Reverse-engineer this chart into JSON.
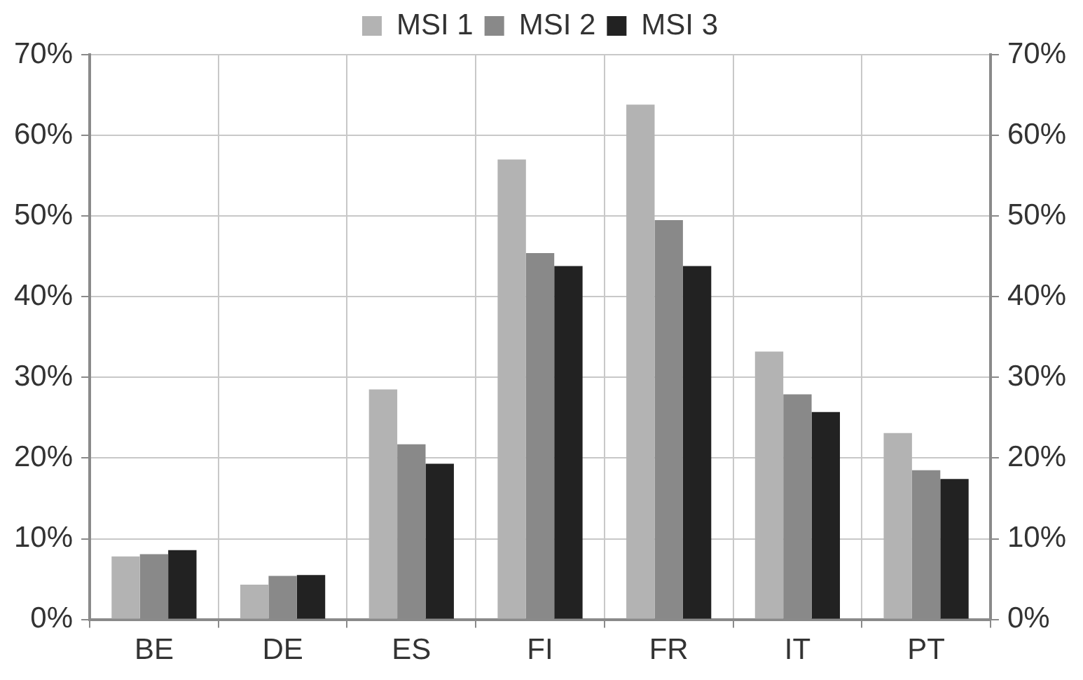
{
  "chart_data": {
    "type": "bar",
    "categories": [
      "BE",
      "DE",
      "ES",
      "FI",
      "FR",
      "IT",
      "PT"
    ],
    "series": [
      {
        "name": "MSI 1",
        "color": "#b3b3b3",
        "values": [
          7.8,
          4.3,
          28.5,
          57,
          63.8,
          33.2,
          23.1
        ]
      },
      {
        "name": "MSI 2",
        "color": "#898989",
        "values": [
          8.1,
          5.4,
          21.7,
          45.4,
          49.5,
          27.9,
          18.5
        ]
      },
      {
        "name": "MSI 3",
        "color": "#222222",
        "values": [
          8.6,
          5.5,
          19.3,
          43.8,
          43.8,
          25.7,
          17.4
        ]
      }
    ],
    "ylim": [
      0,
      70
    ],
    "yticks": [
      {
        "value": 0,
        "label": "0%"
      },
      {
        "value": 10,
        "label": "10%"
      },
      {
        "value": 20,
        "label": "20%"
      },
      {
        "value": 30,
        "label": "30%"
      },
      {
        "value": 40,
        "label": "40%"
      },
      {
        "value": 50,
        "label": "50%"
      },
      {
        "value": 60,
        "label": "60%"
      },
      {
        "value": 70,
        "label": "70%"
      }
    ],
    "y2lim": [
      0,
      70
    ],
    "y2ticks": [
      {
        "value": 0,
        "label": "0%"
      },
      {
        "value": 10,
        "label": "10%"
      },
      {
        "value": 20,
        "label": "20%"
      },
      {
        "value": 30,
        "label": "30%"
      },
      {
        "value": 40,
        "label": "40%"
      },
      {
        "value": 50,
        "label": "50%"
      },
      {
        "value": 60,
        "label": "60%"
      },
      {
        "value": 70,
        "label": "70%"
      }
    ],
    "grid": true,
    "legend": "top"
  }
}
